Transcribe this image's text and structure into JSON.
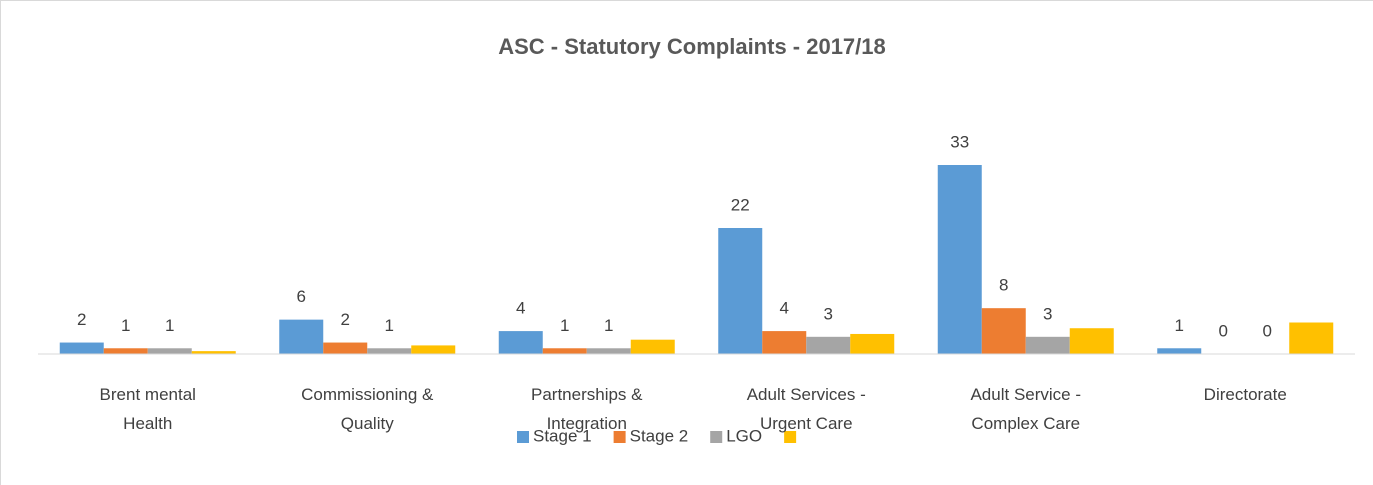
{
  "chart_data": {
    "type": "bar",
    "title": "ASC - Statutory  Complaints - 2017/18",
    "categories": [
      "Brent mental Health",
      "Commissioning & Quality",
      "Partnerships & Integration",
      "Adult Services - Urgent Care",
      "Adult Service - Complex Care",
      "Directorate"
    ],
    "series": [
      {
        "name": "Stage 1",
        "color": "#5b9bd5",
        "values": [
          2,
          6,
          4,
          22,
          33,
          1
        ],
        "data_labels": true
      },
      {
        "name": "Stage 2",
        "color": "#ed7d31",
        "values": [
          1,
          2,
          1,
          4,
          8,
          0
        ],
        "data_labels": true
      },
      {
        "name": "LGO",
        "color": "#a5a5a5",
        "values": [
          1,
          1,
          1,
          3,
          3,
          0
        ],
        "data_labels": true
      },
      {
        "color": "#ffc000",
        "values": [
          0.5,
          1.5,
          2.5,
          3.5,
          4.5,
          5.5
        ],
        "data_labels": false
      }
    ],
    "legend": "bottom"
  }
}
